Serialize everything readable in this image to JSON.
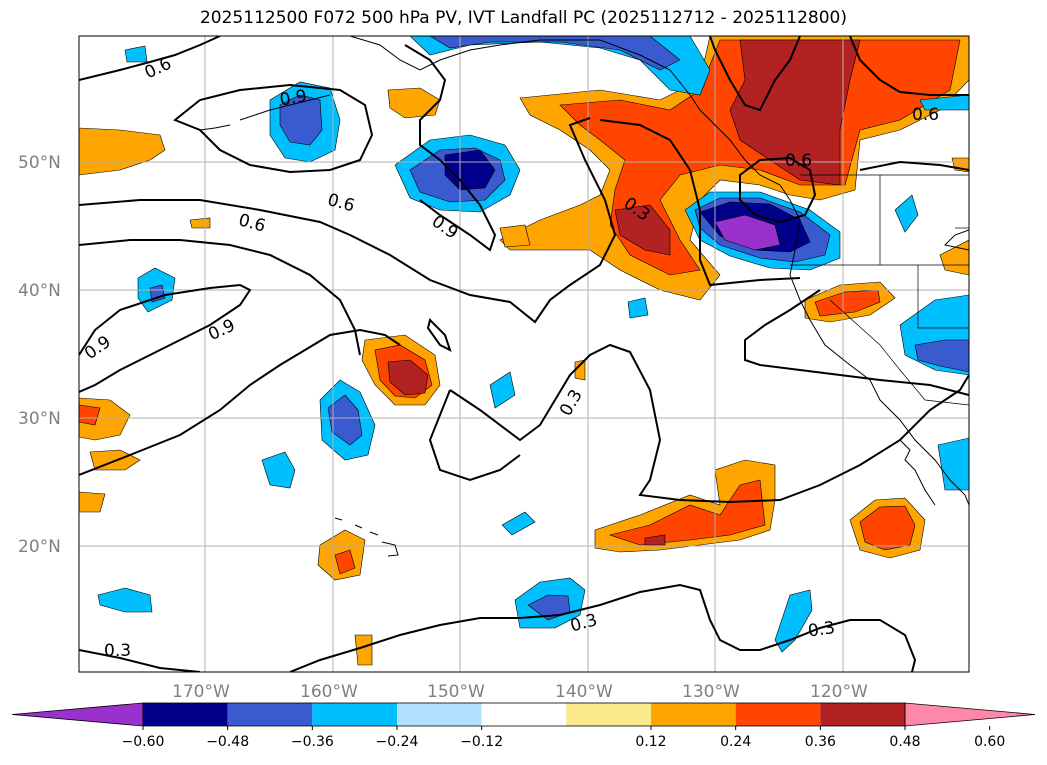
{
  "title": "2025112500 F072 500 hPa PV, IVT Landfall PC (2025112712 - 2025112800)",
  "map": {
    "lat_labels": [
      "50°N",
      "40°N",
      "30°N",
      "20°N"
    ],
    "lon_labels": [
      "170°W",
      "160°W",
      "150°W",
      "140°W",
      "130°W",
      "120°W"
    ],
    "contour_labels": [
      "0.6",
      "0.9",
      "0.6",
      "0.6",
      "0.9",
      "0.3",
      "0.6",
      "0.6",
      "0.9",
      "0.9",
      "0.3",
      "0.3",
      "0.3",
      "0.3"
    ]
  },
  "colorbar": {
    "tick_labels": [
      "−0.60",
      "−0.48",
      "−0.36",
      "−0.24",
      "−0.12",
      "0.12",
      "0.24",
      "0.36",
      "0.48",
      "0.60"
    ],
    "colors": [
      "#9932cc",
      "#00008b",
      "#3a5bcf",
      "#00bfff",
      "#b0e2ff",
      "#ffffff",
      "#fbe88a",
      "#ffa500",
      "#ff4500",
      "#b22222",
      "#ff88aa"
    ]
  }
}
